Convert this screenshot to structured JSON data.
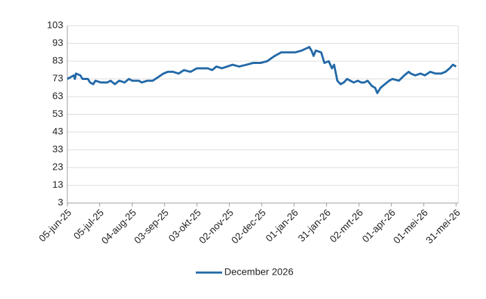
{
  "chart_data": {
    "type": "line",
    "x": [
      "2025-06-05",
      "2025-06-08",
      "2025-06-11",
      "2025-06-12",
      "2025-06-13",
      "2025-06-17",
      "2025-06-19",
      "2025-06-24",
      "2025-06-26",
      "2025-06-29",
      "2025-07-01",
      "2025-07-06",
      "2025-07-12",
      "2025-07-15",
      "2025-07-19",
      "2025-07-23",
      "2025-07-28",
      "2025-08-01",
      "2025-08-04",
      "2025-08-10",
      "2025-08-13",
      "2025-08-18",
      "2025-08-23",
      "2025-08-28",
      "2025-09-02",
      "2025-09-06",
      "2025-09-11",
      "2025-09-16",
      "2025-09-21",
      "2025-09-27",
      "2025-10-03",
      "2025-10-07",
      "2025-10-13",
      "2025-10-17",
      "2025-10-21",
      "2025-10-26",
      "2025-10-31",
      "2025-11-05",
      "2025-11-11",
      "2025-11-18",
      "2025-11-24",
      "2025-12-01",
      "2025-12-07",
      "2025-12-14",
      "2025-12-20",
      "2025-12-26",
      "2026-01-02",
      "2026-01-08",
      "2026-01-15",
      "2026-01-17",
      "2026-01-19",
      "2026-01-21",
      "2026-01-26",
      "2026-01-29",
      "2026-02-02",
      "2026-02-05",
      "2026-02-07",
      "2026-02-10",
      "2026-02-13",
      "2026-02-16",
      "2026-02-19",
      "2026-02-22",
      "2026-02-25",
      "2026-03-01",
      "2026-03-04",
      "2026-03-07",
      "2026-03-10",
      "2026-03-14",
      "2026-03-17",
      "2026-03-19",
      "2026-03-22",
      "2026-03-26",
      "2026-03-30",
      "2026-04-02",
      "2026-04-08",
      "2026-04-13",
      "2026-04-17",
      "2026-04-19",
      "2026-04-23",
      "2026-04-28",
      "2026-05-02",
      "2026-05-07",
      "2026-05-12",
      "2026-05-17",
      "2026-05-21",
      "2026-05-25",
      "2026-05-28",
      "2026-05-31"
    ],
    "series": [
      {
        "name": "December 2026",
        "color": "#2369a8",
        "values": [
          73,
          74,
          75,
          73,
          76,
          75,
          73,
          73,
          71,
          70,
          72,
          71,
          71,
          72,
          70,
          72,
          71,
          73,
          72,
          72,
          71,
          72,
          72,
          74,
          76,
          77,
          77,
          76,
          78,
          77,
          79,
          79,
          79,
          78,
          80,
          79,
          80,
          81,
          80,
          81,
          82,
          82,
          83,
          86,
          88,
          88,
          88,
          89,
          91,
          89,
          86,
          89,
          88,
          82,
          83,
          79,
          81,
          72,
          70,
          71,
          73,
          72,
          71,
          72,
          71,
          71,
          72,
          69,
          68,
          65,
          68,
          70,
          72,
          73,
          72,
          75,
          77,
          76,
          75,
          76,
          75,
          77,
          76,
          76,
          77,
          79,
          81,
          80
        ]
      }
    ],
    "xlim": [
      "2025-06-05",
      "2026-06-02"
    ],
    "xticks": [
      {
        "value": "2025-06-05",
        "label": "05-jun-25"
      },
      {
        "value": "2025-07-05",
        "label": "05-jul-25"
      },
      {
        "value": "2025-08-04",
        "label": "04-aug-25"
      },
      {
        "value": "2025-09-03",
        "label": "03-sep-25"
      },
      {
        "value": "2025-10-03",
        "label": "03-okt-25"
      },
      {
        "value": "2025-11-02",
        "label": "02-nov-25"
      },
      {
        "value": "2025-12-02",
        "label": "02-dec-25"
      },
      {
        "value": "2026-01-01",
        "label": "01-jan-26"
      },
      {
        "value": "2026-01-31",
        "label": "31-jan-26"
      },
      {
        "value": "2026-03-02",
        "label": "02-mrt-26"
      },
      {
        "value": "2026-04-01",
        "label": "01-apr-26"
      },
      {
        "value": "2026-05-01",
        "label": "01-mei-26"
      },
      {
        "value": "2026-05-31",
        "label": "31-mei-26"
      }
    ],
    "ylim": [
      3,
      103
    ],
    "yticks": [
      3,
      13,
      23,
      33,
      43,
      53,
      63,
      73,
      83,
      93,
      103
    ],
    "grid": true,
    "legend": "bottom"
  }
}
